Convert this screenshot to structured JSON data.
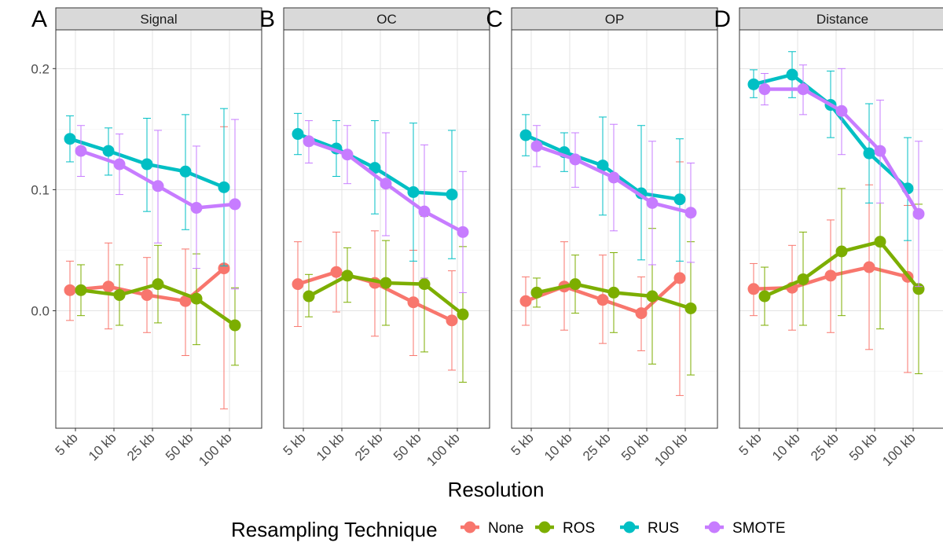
{
  "chart_data": {
    "type": "line",
    "x_label": "Resolution",
    "categories": [
      "5 kb",
      "10 kb",
      "25 kb",
      "50 kb",
      "100 kb"
    ],
    "y_ticks": [
      0.0,
      0.1,
      0.2
    ],
    "y_tick_labels": [
      "0.0",
      "0.1",
      "0.2"
    ],
    "ylim": [
      -0.097,
      0.232
    ],
    "grid": true,
    "error_bars": true,
    "legend": {
      "title": "Resampling Technique",
      "position": "bottom",
      "entries": [
        "None",
        "ROS",
        "RUS",
        "SMOTE"
      ]
    },
    "colors": {
      "None": "#F8766D",
      "ROS": "#7CAE00",
      "RUS": "#00BFC4",
      "SMOTE": "#C77CFF"
    },
    "panels": [
      {
        "letter": "A",
        "strip": "Signal",
        "series": [
          {
            "name": "None",
            "values": [
              0.017,
              0.02,
              0.013,
              0.008,
              0.035
            ],
            "lower": [
              -0.008,
              -0.015,
              -0.018,
              -0.037,
              -0.081
            ],
            "upper": [
              0.041,
              0.056,
              0.044,
              0.051,
              0.152
            ]
          },
          {
            "name": "ROS",
            "values": [
              0.017,
              0.013,
              0.022,
              0.01,
              -0.012
            ],
            "lower": [
              -0.004,
              -0.012,
              -0.01,
              -0.028,
              -0.045
            ],
            "upper": [
              0.038,
              0.038,
              0.054,
              0.047,
              0.019
            ]
          },
          {
            "name": "RUS",
            "values": [
              0.142,
              0.132,
              0.121,
              0.115,
              0.102
            ],
            "lower": [
              0.123,
              0.112,
              0.082,
              0.067,
              0.037
            ],
            "upper": [
              0.161,
              0.151,
              0.159,
              0.162,
              0.167
            ]
          },
          {
            "name": "SMOTE",
            "values": [
              0.132,
              0.121,
              0.103,
              0.085,
              0.088
            ],
            "lower": [
              0.111,
              0.096,
              0.056,
              0.035,
              0.018
            ],
            "upper": [
              0.153,
              0.146,
              0.149,
              0.136,
              0.158
            ]
          }
        ]
      },
      {
        "letter": "B",
        "strip": "OC",
        "series": [
          {
            "name": "None",
            "values": [
              0.022,
              0.032,
              0.023,
              0.007,
              -0.008
            ],
            "lower": [
              -0.013,
              -0.001,
              -0.021,
              -0.037,
              -0.049
            ],
            "upper": [
              0.057,
              0.065,
              0.066,
              0.05,
              0.033
            ]
          },
          {
            "name": "ROS",
            "values": [
              0.012,
              0.029,
              0.023,
              0.022,
              -0.003
            ],
            "lower": [
              -0.005,
              0.007,
              -0.012,
              -0.034,
              -0.059
            ],
            "upper": [
              0.03,
              0.052,
              0.058,
              0.078,
              0.053
            ]
          },
          {
            "name": "RUS",
            "values": [
              0.146,
              0.134,
              0.118,
              0.098,
              0.096
            ],
            "lower": [
              0.129,
              0.111,
              0.08,
              0.041,
              0.043
            ],
            "upper": [
              0.163,
              0.157,
              0.157,
              0.155,
              0.149
            ]
          },
          {
            "name": "SMOTE",
            "values": [
              0.14,
              0.129,
              0.105,
              0.082,
              0.065
            ],
            "lower": [
              0.122,
              0.105,
              0.062,
              0.027,
              0.015
            ],
            "upper": [
              0.157,
              0.153,
              0.147,
              0.137,
              0.115
            ]
          }
        ]
      },
      {
        "letter": "C",
        "strip": "OP",
        "series": [
          {
            "name": "None",
            "values": [
              0.008,
              0.02,
              0.009,
              -0.002,
              0.027
            ],
            "lower": [
              -0.012,
              -0.016,
              -0.027,
              -0.033,
              -0.07
            ],
            "upper": [
              0.028,
              0.057,
              0.046,
              0.028,
              0.123
            ]
          },
          {
            "name": "ROS",
            "values": [
              0.015,
              0.022,
              0.015,
              0.012,
              0.002
            ],
            "lower": [
              0.003,
              -0.002,
              -0.018,
              -0.044,
              -0.053
            ],
            "upper": [
              0.027,
              0.046,
              0.048,
              0.068,
              0.057
            ]
          },
          {
            "name": "RUS",
            "values": [
              0.145,
              0.131,
              0.12,
              0.097,
              0.092
            ],
            "lower": [
              0.128,
              0.115,
              0.079,
              0.042,
              0.041
            ],
            "upper": [
              0.162,
              0.147,
              0.16,
              0.153,
              0.142
            ]
          },
          {
            "name": "SMOTE",
            "values": [
              0.136,
              0.125,
              0.11,
              0.089,
              0.081
            ],
            "lower": [
              0.119,
              0.102,
              0.066,
              0.038,
              0.04
            ],
            "upper": [
              0.153,
              0.147,
              0.154,
              0.14,
              0.122
            ]
          }
        ]
      },
      {
        "letter": "D",
        "strip": "Distance",
        "series": [
          {
            "name": "None",
            "values": [
              0.018,
              0.019,
              0.029,
              0.036,
              0.028
            ],
            "lower": [
              -0.004,
              -0.016,
              -0.018,
              -0.032,
              -0.051
            ],
            "upper": [
              0.039,
              0.054,
              0.075,
              0.104,
              0.087
            ]
          },
          {
            "name": "ROS",
            "values": [
              0.012,
              0.026,
              0.049,
              0.057,
              0.018
            ],
            "lower": [
              -0.012,
              -0.012,
              -0.004,
              -0.015,
              -0.052
            ],
            "upper": [
              0.036,
              0.065,
              0.101,
              0.129,
              0.088
            ]
          },
          {
            "name": "RUS",
            "values": [
              0.187,
              0.195,
              0.17,
              0.13,
              0.101
            ],
            "lower": [
              0.176,
              0.176,
              0.143,
              0.089,
              0.058
            ],
            "upper": [
              0.199,
              0.214,
              0.198,
              0.171,
              0.143
            ]
          },
          {
            "name": "SMOTE",
            "values": [
              0.183,
              0.183,
              0.165,
              0.132,
              0.08
            ],
            "lower": [
              0.17,
              0.162,
              0.129,
              0.089,
              0.02
            ],
            "upper": [
              0.196,
              0.203,
              0.2,
              0.174,
              0.14
            ]
          }
        ]
      }
    ]
  }
}
